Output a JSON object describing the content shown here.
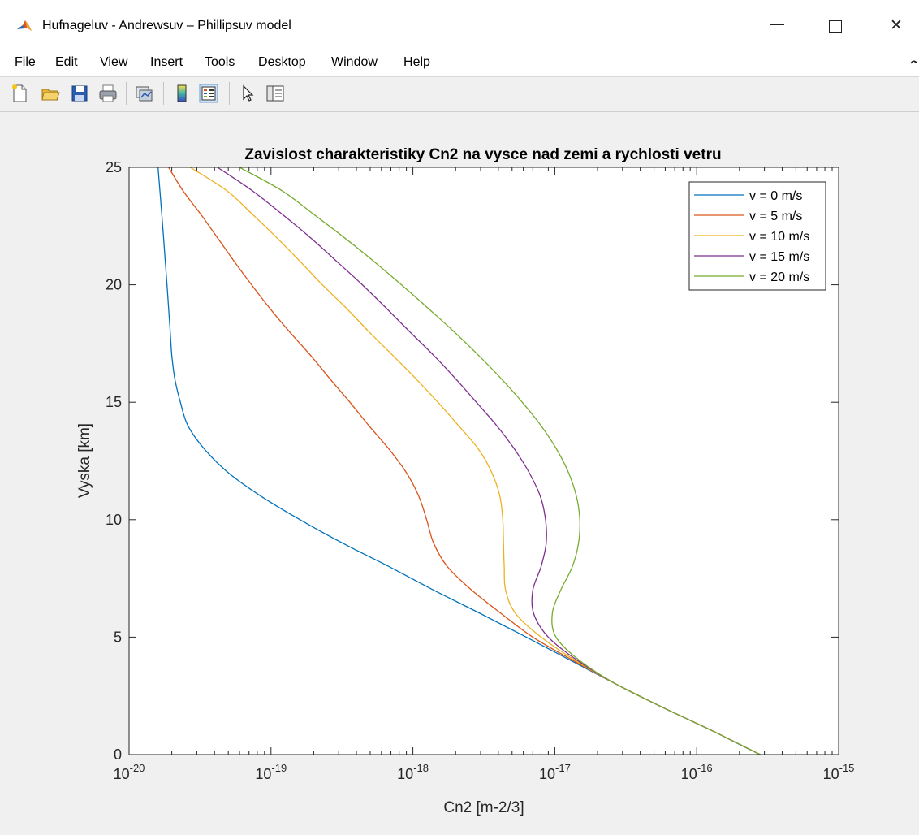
{
  "window": {
    "title": "Hufnageluv - Andrewsuv – Phillipsuv model",
    "minimize_glyph": "—",
    "close_glyph": "✕"
  },
  "menu": {
    "items": [
      {
        "key": "F",
        "rest": "ile"
      },
      {
        "key": "E",
        "rest": "dit"
      },
      {
        "key": "V",
        "rest": "iew"
      },
      {
        "key": "I",
        "rest": "nsert"
      },
      {
        "key": "T",
        "rest": "ools"
      },
      {
        "key": "D",
        "rest": "esktop"
      },
      {
        "key": "W",
        "rest": "indow"
      },
      {
        "key": "H",
        "rest": "elp"
      }
    ]
  },
  "toolbar": {
    "icons": [
      "new-figure-icon",
      "open-file-icon",
      "save-icon",
      "print-icon",
      "link-plot-icon",
      "insert-colorbar-icon",
      "insert-legend-icon",
      "edit-plot-icon",
      "property-inspector-icon"
    ]
  },
  "chart_data": {
    "type": "line",
    "title": "Zavislost charakteristiky Cn2 na vysce nad zemi a rychlosti vetru",
    "xlabel": "Cn2 [m-2/3]",
    "ylabel": "Vyska [km]",
    "xscale": "log",
    "xlim": [
      1e-20,
      1e-15
    ],
    "ylim": [
      0,
      25
    ],
    "x_tick_exponents": [
      "-20",
      "-19",
      "-18",
      "-17",
      "-16",
      "-15"
    ],
    "x_tick_base": "10",
    "y_ticks": [
      "0",
      "5",
      "10",
      "15",
      "20",
      "25"
    ],
    "grid": false,
    "legend_position": "top-right",
    "series": [
      {
        "name": "v = 0 m/s",
        "color": "#0072bd",
        "points": [
          [
            0,
            2.8e-16
          ],
          [
            0.5,
            1.9e-16
          ],
          [
            1,
            1.3e-16
          ],
          [
            2,
            5.8e-17
          ],
          [
            3,
            2.7e-17
          ],
          [
            4,
            1.3e-17
          ],
          [
            5,
            6.3e-18
          ],
          [
            6,
            3e-18
          ],
          [
            7,
            1.4e-18
          ],
          [
            8,
            6.8e-19
          ],
          [
            9,
            3.2e-19
          ],
          [
            10,
            1.6e-19
          ],
          [
            11,
            8.5e-20
          ],
          [
            12,
            5e-20
          ],
          [
            13,
            3.4e-20
          ],
          [
            14,
            2.6e-20
          ],
          [
            15,
            2.3e-20
          ],
          [
            16,
            2.1e-20
          ],
          [
            17,
            2e-20
          ],
          [
            18,
            1.95e-20
          ],
          [
            19,
            1.9e-20
          ],
          [
            20,
            1.85e-20
          ],
          [
            21,
            1.8e-20
          ],
          [
            22,
            1.75e-20
          ],
          [
            23,
            1.7e-20
          ],
          [
            24,
            1.65e-20
          ],
          [
            25,
            1.6e-20
          ]
        ]
      },
      {
        "name": "v = 5 m/s",
        "color": "#d95319",
        "points": [
          [
            0,
            2.8e-16
          ],
          [
            1,
            1.3e-16
          ],
          [
            2,
            5.8e-17
          ],
          [
            3,
            2.7e-17
          ],
          [
            4,
            1.35e-17
          ],
          [
            5,
            7e-18
          ],
          [
            6,
            4.2e-18
          ],
          [
            7,
            2.6e-18
          ],
          [
            8,
            1.75e-18
          ],
          [
            9,
            1.4e-18
          ],
          [
            10,
            1.25e-18
          ],
          [
            11,
            1.1e-18
          ],
          [
            12,
            9e-19
          ],
          [
            13,
            6.8e-19
          ],
          [
            14,
            4.9e-19
          ],
          [
            15,
            3.6e-19
          ],
          [
            16,
            2.6e-19
          ],
          [
            17,
            1.9e-19
          ],
          [
            18,
            1.35e-19
          ],
          [
            19,
            9.8e-20
          ],
          [
            20,
            7.3e-20
          ],
          [
            21,
            5.5e-20
          ],
          [
            22,
            4.2e-20
          ],
          [
            23,
            3.2e-20
          ],
          [
            24,
            2.4e-20
          ],
          [
            25,
            1.9e-20
          ]
        ]
      },
      {
        "name": "v = 10 m/s",
        "color": "#edb120",
        "points": [
          [
            0,
            2.8e-16
          ],
          [
            1,
            1.3e-16
          ],
          [
            2,
            5.8e-17
          ],
          [
            3,
            2.7e-17
          ],
          [
            4,
            1.4e-17
          ],
          [
            5,
            8e-18
          ],
          [
            6,
            5.3e-18
          ],
          [
            7,
            4.5e-18
          ],
          [
            8,
            4.4e-18
          ],
          [
            9,
            4.35e-18
          ],
          [
            10,
            4.3e-18
          ],
          [
            11,
            4.1e-18
          ],
          [
            12,
            3.6e-18
          ],
          [
            13,
            2.9e-18
          ],
          [
            14,
            2.1e-18
          ],
          [
            15,
            1.5e-18
          ],
          [
            16,
            1.05e-18
          ],
          [
            17,
            7.2e-19
          ],
          [
            18,
            4.9e-19
          ],
          [
            19,
            3.4e-19
          ],
          [
            20,
            2.3e-19
          ],
          [
            21,
            1.6e-19
          ],
          [
            22,
            1.1e-19
          ],
          [
            23,
            7.4e-20
          ],
          [
            24,
            4.9e-20
          ],
          [
            25,
            2.7e-20
          ]
        ]
      },
      {
        "name": "v = 15 m/s",
        "color": "#7e2f8e",
        "points": [
          [
            0,
            2.8e-16
          ],
          [
            1,
            1.3e-16
          ],
          [
            2,
            5.8e-17
          ],
          [
            3,
            2.7e-17
          ],
          [
            4,
            1.45e-17
          ],
          [
            5,
            9e-18
          ],
          [
            6,
            7.1e-18
          ],
          [
            7,
            7e-18
          ],
          [
            8,
            8e-18
          ],
          [
            9,
            8.7e-18
          ],
          [
            10,
            8.6e-18
          ],
          [
            11,
            7.9e-18
          ],
          [
            12,
            6.6e-18
          ],
          [
            13,
            5.2e-18
          ],
          [
            14,
            3.9e-18
          ],
          [
            15,
            2.8e-18
          ],
          [
            16,
            2e-18
          ],
          [
            17,
            1.4e-18
          ],
          [
            18,
            9.5e-19
          ],
          [
            19,
            6.5e-19
          ],
          [
            20,
            4.4e-19
          ],
          [
            21,
            2.9e-19
          ],
          [
            22,
            1.9e-19
          ],
          [
            23,
            1.2e-19
          ],
          [
            24,
            7.4e-20
          ],
          [
            25,
            4.2e-20
          ]
        ]
      },
      {
        "name": "v = 20 m/s",
        "color": "#77ac30",
        "points": [
          [
            0,
            2.8e-16
          ],
          [
            1,
            1.3e-16
          ],
          [
            2,
            5.8e-17
          ],
          [
            3,
            2.7e-17
          ],
          [
            4,
            1.5e-17
          ],
          [
            5,
            1.02e-17
          ],
          [
            6,
            9.6e-18
          ],
          [
            7,
            1.1e-17
          ],
          [
            8,
            1.33e-17
          ],
          [
            9,
            1.47e-17
          ],
          [
            10,
            1.5e-17
          ],
          [
            11,
            1.42e-17
          ],
          [
            12,
            1.25e-17
          ],
          [
            13,
            1.03e-17
          ],
          [
            14,
            8e-18
          ],
          [
            15,
            5.9e-18
          ],
          [
            16,
            4.2e-18
          ],
          [
            17,
            2.9e-18
          ],
          [
            18,
            1.95e-18
          ],
          [
            19,
            1.28e-18
          ],
          [
            20,
            8.3e-19
          ],
          [
            21,
            5.3e-19
          ],
          [
            22,
            3.3e-19
          ],
          [
            23,
            2e-19
          ],
          [
            24,
            1.2e-19
          ],
          [
            25,
            6e-20
          ]
        ]
      }
    ]
  }
}
